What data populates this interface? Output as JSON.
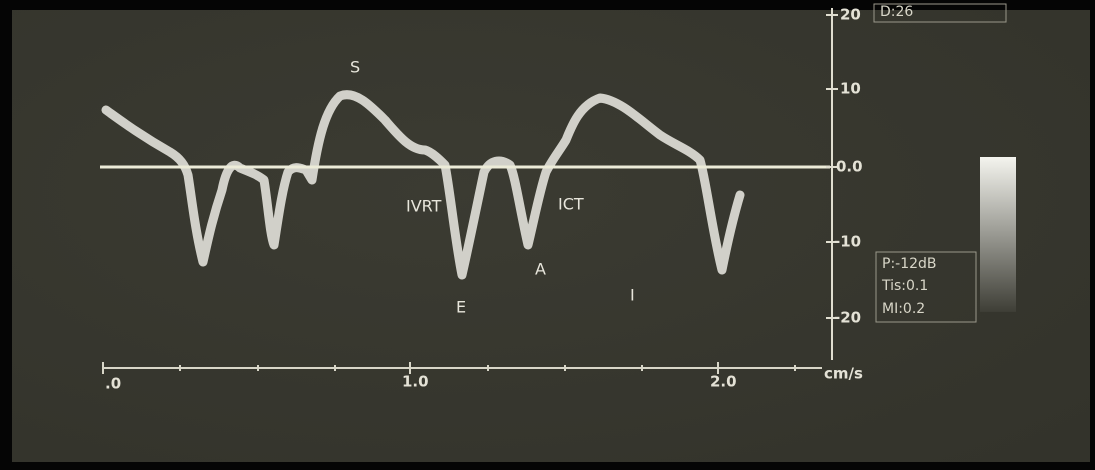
{
  "display": {
    "velocity_scale": {
      "ticks": [
        "20",
        "10",
        "0.0",
        "-10",
        "-20"
      ]
    },
    "time_scale": {
      "ticks": [
        ".0",
        "1.0",
        "2.0"
      ],
      "unit": "cm/s"
    },
    "wave_labels": [
      "S",
      "IVRT",
      "ICT",
      "E",
      "A",
      "I"
    ],
    "info_top": "D:26",
    "info_box": [
      "P:-12dB",
      "Tis:0.1",
      "MI:0.2"
    ]
  }
}
